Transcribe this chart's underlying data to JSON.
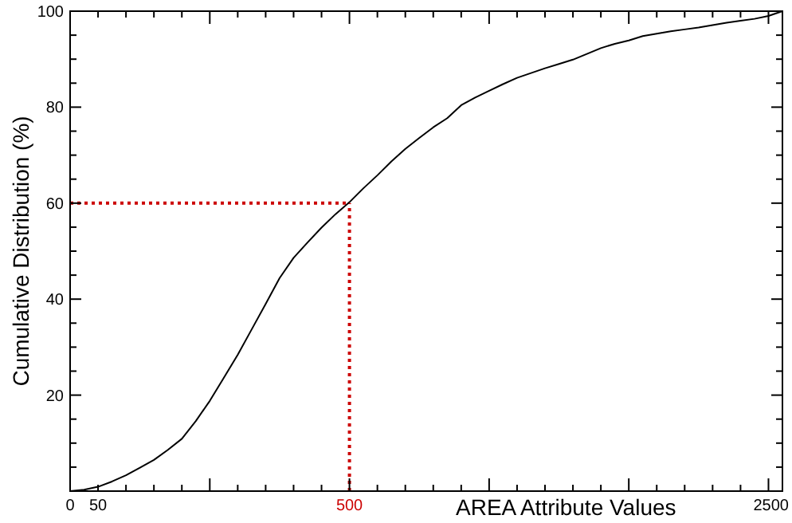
{
  "chart_data": {
    "type": "line",
    "xlabel": "AREA Attribute Values",
    "ylabel": "Cumulative Distribution (%)",
    "categories": [
      "0",
      null,
      "50",
      null,
      null,
      null,
      null,
      null,
      null,
      null,
      null,
      null,
      null,
      null,
      null,
      null,
      null,
      null,
      null,
      null,
      "500",
      null,
      null,
      null,
      null,
      null,
      null,
      null,
      null,
      null,
      null,
      null,
      null,
      null,
      null,
      null,
      null,
      null,
      null,
      null,
      null,
      null,
      null,
      null,
      null,
      null,
      null,
      null,
      null,
      null,
      null,
      "2500"
    ],
    "series": [
      {
        "color": "#000000",
        "values": [
          0,
          0.3,
          0.9,
          2,
          3.3,
          4.9,
          6.5,
          8.6,
          10.9,
          14.6,
          18.8,
          23.6,
          28.4,
          33.7,
          39,
          44.4,
          48.6,
          51.8,
          54.9,
          57.7,
          60.2,
          63.1,
          65.8,
          68.7,
          71.3,
          73.6,
          75.8,
          77.7,
          80.4,
          82,
          83.4,
          84.8,
          86.1,
          87.1,
          88.1,
          89,
          89.9,
          91.1,
          92.3,
          93.2,
          93.9,
          94.8,
          95.3,
          95.8,
          96.2,
          96.6,
          97.1,
          97.6,
          98,
          98.4,
          99,
          100
        ]
      }
    ],
    "ylim": [
      0,
      100
    ],
    "yticks": [
      {
        "value": 5,
        "label": null
      },
      {
        "value": 10,
        "label": null
      },
      {
        "value": 15,
        "label": null
      },
      20,
      {
        "value": 25,
        "label": null
      },
      {
        "value": 30,
        "label": null
      },
      {
        "value": 35,
        "label": null
      },
      40,
      {
        "value": 45,
        "label": null
      },
      {
        "value": 50,
        "label": null
      },
      {
        "value": 55,
        "label": null
      },
      60,
      {
        "value": 65,
        "label": null
      },
      {
        "value": 70,
        "label": null
      },
      {
        "value": 75,
        "label": null
      },
      80,
      {
        "value": 85,
        "label": null
      },
      {
        "value": 90,
        "label": null
      },
      {
        "value": 95,
        "label": null
      },
      100
    ],
    "ref_lines": [
      {
        "axis": "y",
        "value": 60,
        "color": "#cc0000",
        "line_style": "dotted"
      },
      {
        "axis": "x",
        "value": "500",
        "color": "#cc0000",
        "line_style": "dotted"
      }
    ],
    "grid": false,
    "marker": "none",
    "line_style": "solid"
  }
}
